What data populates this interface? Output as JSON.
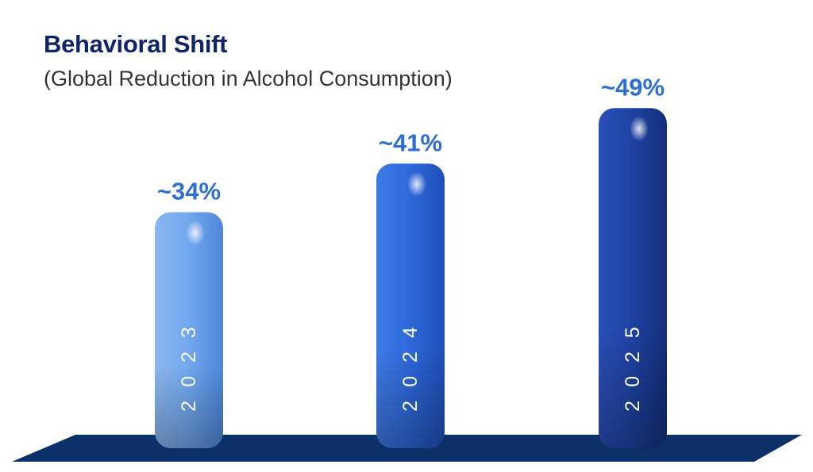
{
  "title": "Behavioral Shift",
  "subtitle": "(Global Reduction in Alcohol Consumption)",
  "colors": {
    "title": "#0f2568",
    "subtitle": "#333333",
    "value_label": "#2f6fd0",
    "floor": "#0c3068",
    "bar_light": "#6fa4ec",
    "bar_mid": "#2e66d8",
    "bar_dark": "#1b3f9c"
  },
  "chart_data": {
    "type": "bar",
    "title": "Behavioral Shift",
    "subtitle": "(Global Reduction in Alcohol Consumption)",
    "categories": [
      "2023",
      "2024",
      "2025"
    ],
    "values": [
      34,
      41,
      49
    ],
    "value_labels": [
      "~34%",
      "~41%",
      "~49%"
    ],
    "value_unit": "%",
    "xlabel": "",
    "ylabel": "",
    "grid": false,
    "legend": "none",
    "category_label_position": "inside-bar-vertical"
  }
}
